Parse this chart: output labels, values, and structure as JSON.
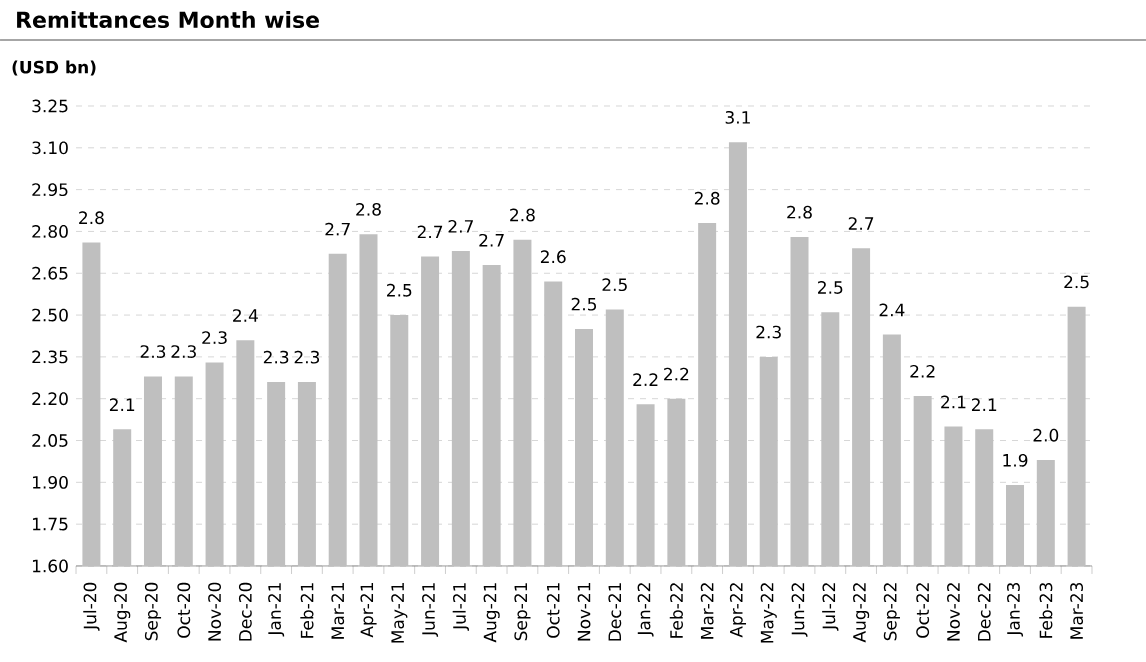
{
  "chart_data": {
    "type": "bar",
    "title": "Remittances Month wise",
    "ylabel": "(USD bn)",
    "categories": [
      "Jul-20",
      "Aug-20",
      "Sep-20",
      "Oct-20",
      "Nov-20",
      "Dec-20",
      "Jan-21",
      "Feb-21",
      "Mar-21",
      "Apr-21",
      "May-21",
      "Jun-21",
      "Jul-21",
      "Aug-21",
      "Sep-21",
      "Oct-21",
      "Nov-21",
      "Dec-21",
      "Jan-22",
      "Feb-22",
      "Mar-22",
      "Apr-22",
      "May-22",
      "Jun-22",
      "Jul-22",
      "Aug-22",
      "Sep-22",
      "Oct-22",
      "Nov-22",
      "Dec-22",
      "Jan-23",
      "Feb-23",
      "Mar-23"
    ],
    "values": [
      2.76,
      2.09,
      2.28,
      2.28,
      2.33,
      2.41,
      2.26,
      2.26,
      2.72,
      2.79,
      2.5,
      2.71,
      2.73,
      2.68,
      2.77,
      2.62,
      2.45,
      2.52,
      2.18,
      2.2,
      2.83,
      3.12,
      2.35,
      2.78,
      2.51,
      2.74,
      2.43,
      2.21,
      2.1,
      2.09,
      1.89,
      1.98,
      2.53
    ],
    "value_labels": [
      "2.8",
      "2.1",
      "2.3",
      "2.3",
      "2.3",
      "2.4",
      "2.3",
      "2.3",
      "2.7",
      "2.8",
      "2.5",
      "2.7",
      "2.7",
      "2.7",
      "2.8",
      "2.6",
      "2.5",
      "2.5",
      "2.2",
      "2.2",
      "2.8",
      "3.1",
      "2.3",
      "2.8",
      "2.5",
      "2.7",
      "2.4",
      "2.2",
      "2.1",
      "2.1",
      "1.9",
      "2.0",
      "2.5"
    ],
    "color": "#bfbfbf",
    "ylim": [
      1.6,
      3.25
    ],
    "yticks": [
      {
        "value": 1.6,
        "label": "1.60"
      },
      {
        "value": 1.75,
        "label": "1.75"
      },
      {
        "value": 1.9,
        "label": "1.90"
      },
      {
        "value": 2.05,
        "label": "2.05"
      },
      {
        "value": 2.2,
        "label": "2.20"
      },
      {
        "value": 2.35,
        "label": "2.35"
      },
      {
        "value": 2.5,
        "label": "2.50"
      },
      {
        "value": 2.65,
        "label": "2.65"
      },
      {
        "value": 2.8,
        "label": "2.80"
      },
      {
        "value": 2.95,
        "label": "2.95"
      },
      {
        "value": 3.1,
        "label": "3.10"
      },
      {
        "value": 3.25,
        "label": "3.25"
      }
    ],
    "grid": "y"
  }
}
